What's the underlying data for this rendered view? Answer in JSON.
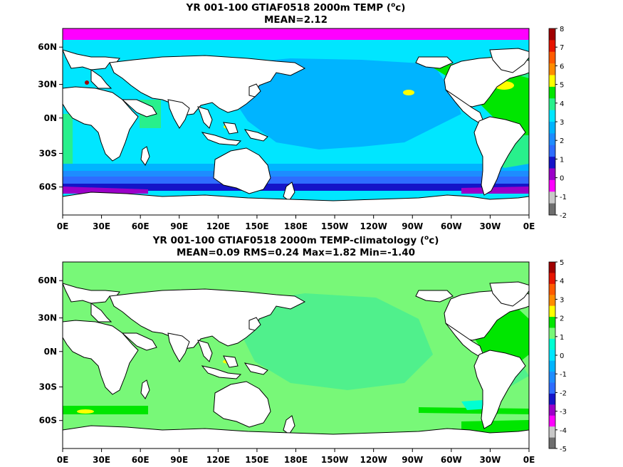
{
  "colors": {
    "magenta": "#ff00ff",
    "purple": "#9b00c8",
    "darkblue": "#1414c8",
    "blue": "#2e6cff",
    "azure": "#1e8cff",
    "skyblue": "#00b4ff",
    "cyan": "#00e6ff",
    "aqua": "#00ffd2",
    "seagreen": "#28f08c",
    "lightgreen": "#78f878",
    "green": "#00e600",
    "yellow": "#ffff00",
    "orange": "#ff8c00",
    "red": "#e61400",
    "darkred": "#a00000",
    "gray": "#8c8c8c",
    "land": "#ffffff",
    "coast": "#000000"
  },
  "maps": [
    {
      "id": "temp",
      "title_prefix": "YR 001-100 GTIAF0518 2000m TEMP (",
      "title_unit_sup": "o",
      "title_unit_suffix": "c)",
      "subtitle": "MEAN=2.12",
      "x_ticks": [
        "0E",
        "30E",
        "60E",
        "90E",
        "120E",
        "150E",
        "180E",
        "150W",
        "120W",
        "90W",
        "60W",
        "30W",
        "0E"
      ],
      "y_ticks": [
        "60N",
        "30N",
        "0N",
        "30S",
        "60S"
      ],
      "colorbar": {
        "labels": [
          "8",
          "7",
          "6",
          "5",
          "4",
          "3",
          "2",
          "1",
          "0",
          "-1",
          "-2"
        ],
        "colors": [
          "#a00000",
          "#e61400",
          "#ff5a00",
          "#ff8c00",
          "#ffff00",
          "#00e600",
          "#28f08c",
          "#00e6ff",
          "#00b4ff",
          "#1e8cff",
          "#2e6cff",
          "#1414c8",
          "#9b00c8",
          "#ff00ff",
          "#c8c8c8",
          "#6e6e6e"
        ]
      }
    },
    {
      "id": "anom",
      "title_prefix": "YR 001-100 GTIAF0518 2000m TEMP-climatology (",
      "title_unit_sup": "o",
      "title_unit_suffix": "c)",
      "subtitle": "MEAN=0.09   RMS=0.24   Max=1.82   Min=-1.40",
      "x_ticks": [
        "0E",
        "30E",
        "60E",
        "90E",
        "120E",
        "150E",
        "180E",
        "150W",
        "120W",
        "90W",
        "60W",
        "30W",
        "0E"
      ],
      "y_ticks": [
        "60N",
        "30N",
        "0N",
        "30S",
        "60S"
      ],
      "colorbar": {
        "labels": [
          "5",
          "4",
          "3",
          "2",
          "1",
          "0",
          "-1",
          "-2",
          "-3",
          "-4",
          "-5"
        ],
        "colors": [
          "#a00000",
          "#e61400",
          "#ff5a00",
          "#ff8c00",
          "#ffff00",
          "#00e600",
          "#78f878",
          "#00ffd2",
          "#00e6ff",
          "#00b4ff",
          "#1e8cff",
          "#2e6cff",
          "#1414c8",
          "#9b00c8",
          "#ff00ff",
          "#c8c8c8",
          "#6e6e6e"
        ]
      }
    }
  ]
}
